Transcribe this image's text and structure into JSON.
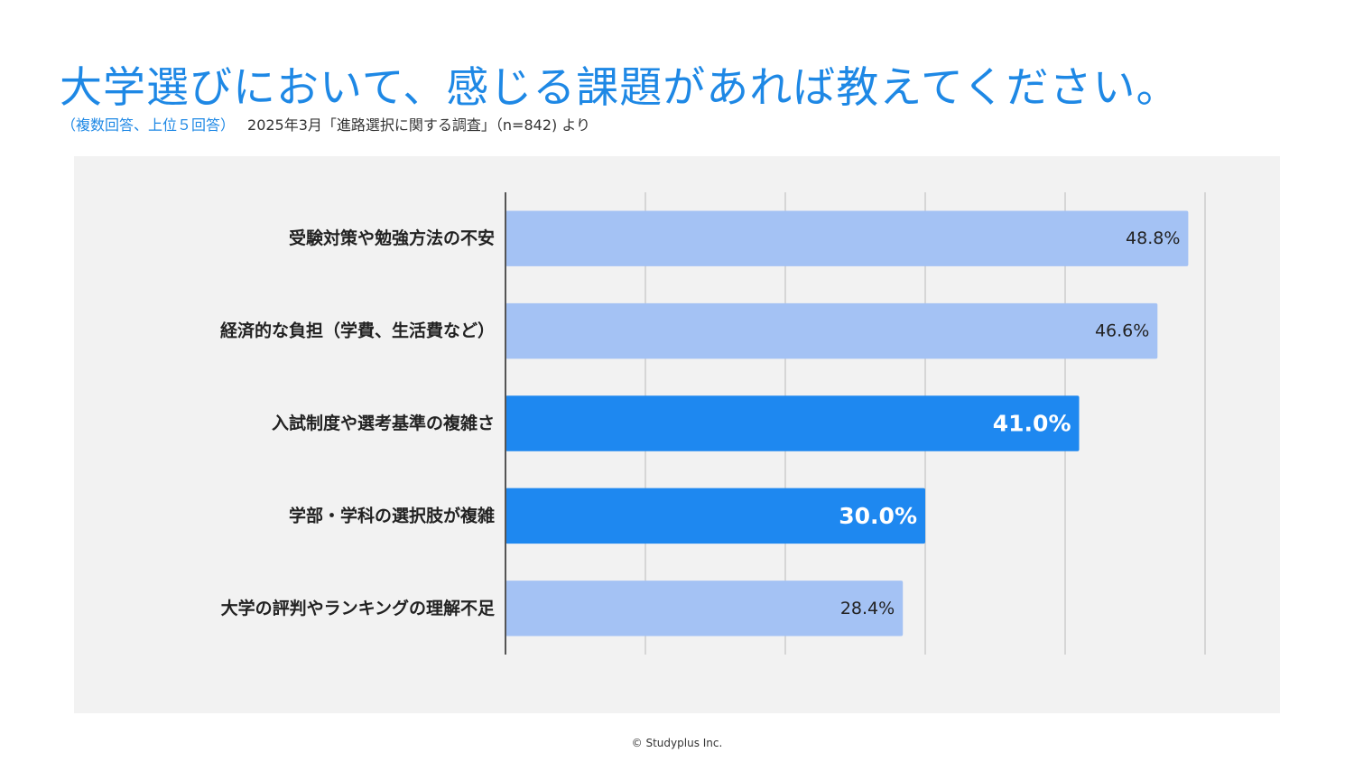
{
  "title": "大学選びにおいて、感じる課題があれば教えてください。",
  "subtitle": {
    "note": "（複数回答、上位５回答）",
    "source": "2025年3月「進路選択に関する調査」（n=842) より"
  },
  "chart_data": {
    "type": "bar",
    "orientation": "horizontal",
    "categories": [
      "受験対策や勉強方法の不安",
      "経済的な負担（学費、生活費など）",
      "入試制度や選考基準の複雑さ",
      "学部・学科の選択肢が複雑",
      "大学の評判やランキングの理解不足"
    ],
    "values": [
      48.8,
      46.6,
      41.0,
      30.0,
      28.4
    ],
    "value_labels": [
      "48.8%",
      "46.6%",
      "41.0%",
      "30.0%",
      "28.4%"
    ],
    "highlighted": [
      false,
      false,
      true,
      true,
      false
    ],
    "xlim": [
      0,
      50
    ],
    "grid_step": 10,
    "colors": {
      "normal": "#a4c2f4",
      "highlight": "#1e88f0",
      "grid": "#cccccc",
      "axis": "#555555"
    }
  },
  "footer": "© Studyplus Inc."
}
